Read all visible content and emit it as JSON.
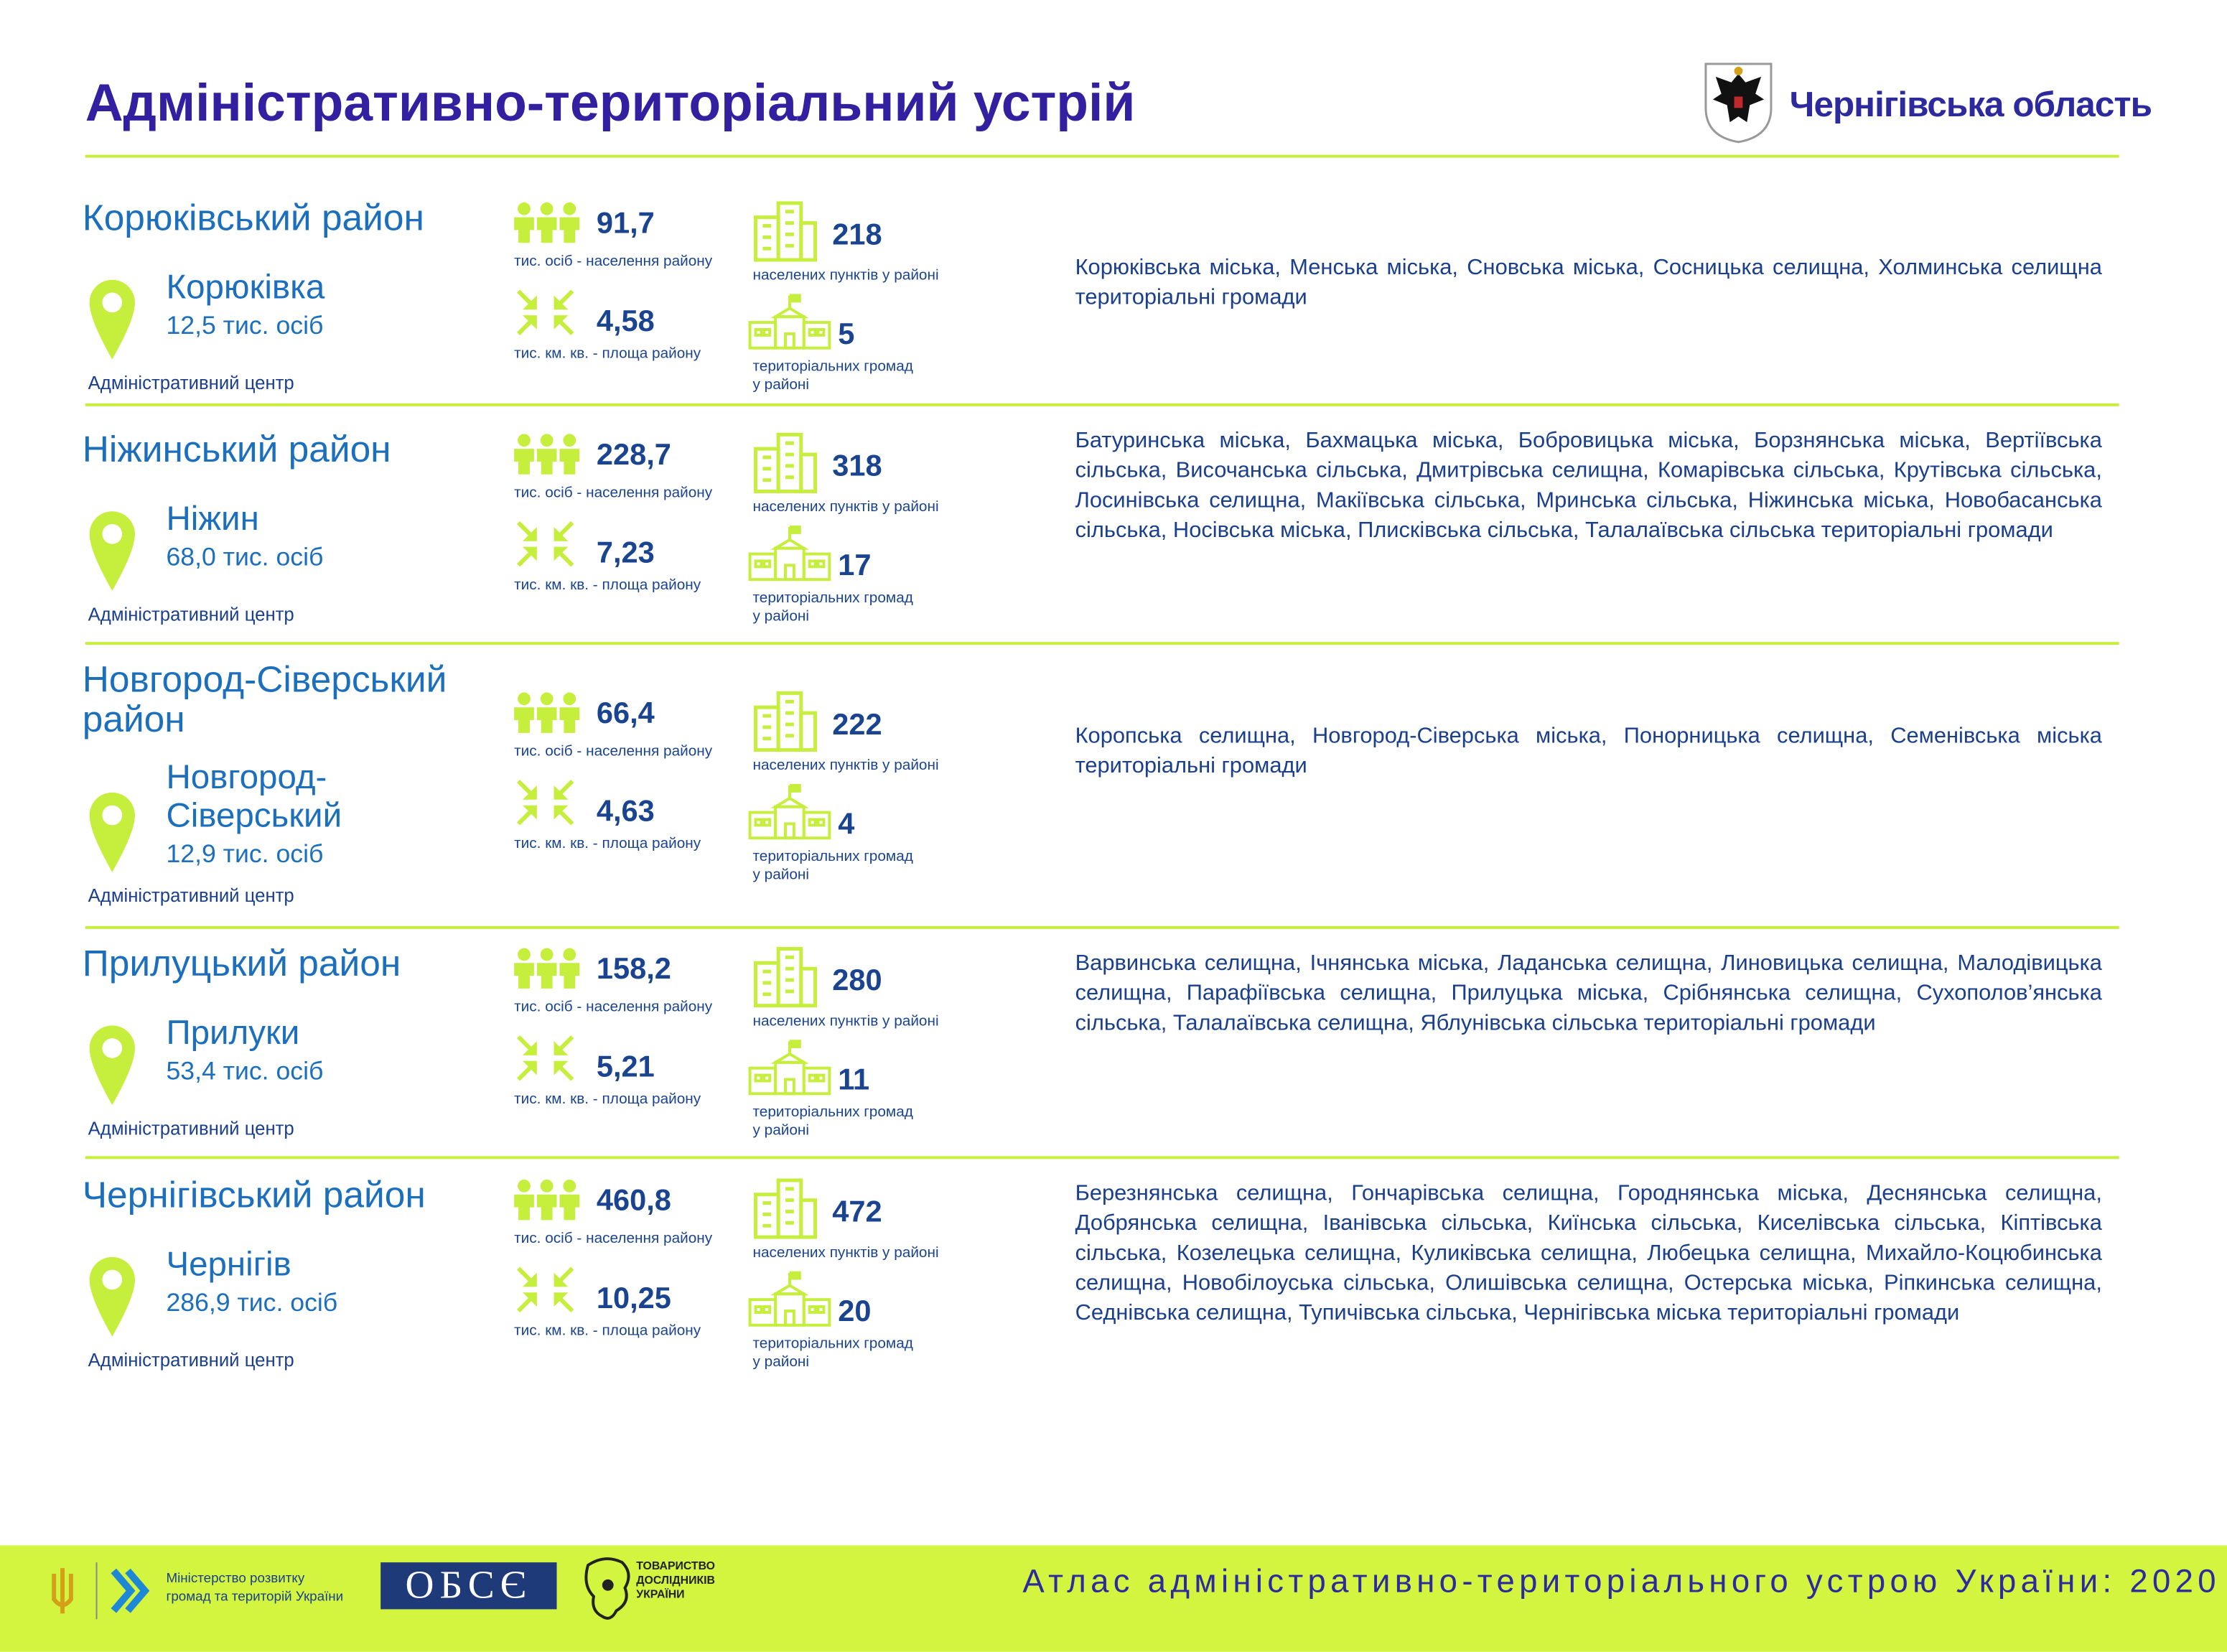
{
  "header": {
    "title": "Адміністративно-територіальний устрій",
    "region": "Чернігівська область"
  },
  "labels": {
    "center": "Адміністративний центр",
    "population": "тис. осіб - населення району",
    "area": "тис. км. кв.  - площа району",
    "settlements": "населених пунктів у районі",
    "communities": [
      "територіальних громад",
      "у районі"
    ]
  },
  "districts": [
    {
      "name": "Корюківський район",
      "center": "Корюківка",
      "center_population": "12,5 тис. осіб",
      "population": "91,7",
      "area": "4,58",
      "settlements": "218",
      "communities": "5",
      "communities_text": "Корюківська міська, Менська міська, Сновська міська, Сосницька селищна, Холминська селищна територіальні громади"
    },
    {
      "name": "Ніжинський район",
      "center": "Ніжин",
      "center_population": "68,0 тис. осіб",
      "population": "228,7",
      "area": "7,23",
      "settlements": "318",
      "communities": "17",
      "communities_text": "Батуринська міська, Бахмацька міська, Бобровицька міська, Борзнянська міська, Вертіївська сільська, Височанська сільська, Дмитрівська селищна, Комарівська сільська, Крутівська сільська, Лосинівська селищна, Макіївська сільська, Мринська сільська, Ніжинська міська, Новобасанська сільська, Носівська міська, Плисківська сільська, Талалаївська сільська територіальні громади"
    },
    {
      "name": "Новгород-Сіверський район",
      "center": "Новгород-Сіверський",
      "center_population": "12,9 тис. осіб",
      "population": "66,4",
      "area": "4,63",
      "settlements": "222",
      "communities": "4",
      "communities_text": "Коропська селищна, Новгород-Сіверська міська, Понорницька селищна, Семенівська міська територіальні громади"
    },
    {
      "name": "Прилуцький район",
      "center": "Прилуки",
      "center_population": "53,4 тис. осіб",
      "population": "158,2",
      "area": "5,21",
      "settlements": "280",
      "communities": "11",
      "communities_text": "Варвинська селищна, Ічнянська міська, Ладанська селищна, Линовицька селищна, Малодівицька селищна, Парафіївська селищна, Прилуцька міська, Срібнянська селищна, Сухополов’янська сільська, Талалаївська селищна, Яблунівська сільська територіальні громади"
    },
    {
      "name": "Чернігівський район",
      "center": "Чернігів",
      "center_population": "286,9 тис. осіб",
      "population": "460,8",
      "area": "10,25",
      "settlements": "472",
      "communities": "20",
      "communities_text": "Березнянська селищна, Гончарівська селищна, Городнянська міська, Деснянська селищна, Добрянська селищна, Іванівська сільська, Киїнська сільська, Киселівська сільська, Кіптівська сільська, Козелецька селищна, Куликівська селищна, Любецька селищна, Михайло-Коцюбинська селищна, Новобілоуська сільська, Олишівська селищна, Остерська міська, Ріпкинська селищна, Седнівська селищна, Тупичівська сільська, Чернігівська міська територіальні громади"
    }
  ],
  "footer": {
    "ministry": [
      "Міністерство розвитку",
      "громад та територій України"
    ],
    "osce": "ОБСЄ",
    "society": [
      "ТОВАРИСТВО",
      "ДОСЛІДНИКІВ",
      "УКРАЇНИ"
    ],
    "atlas": "Атлас адміністративно-територіального устрою України: 2020"
  }
}
